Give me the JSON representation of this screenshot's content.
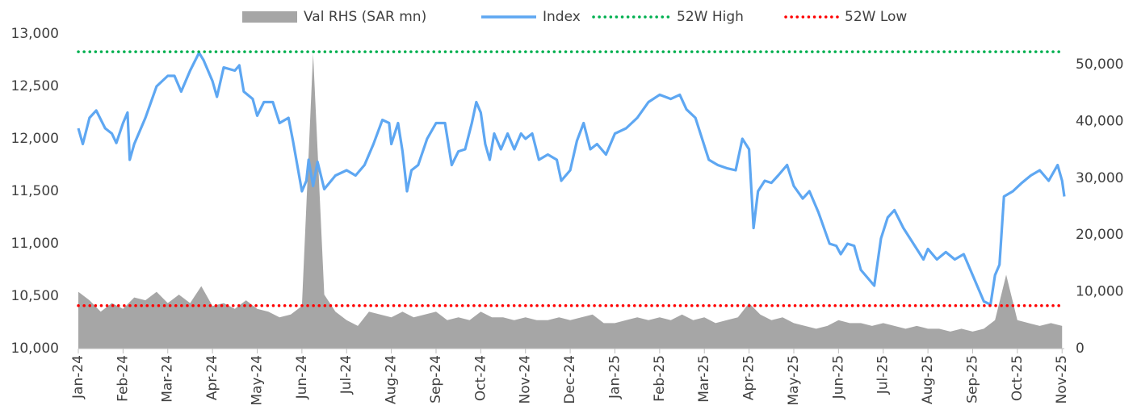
{
  "chart_data": {
    "type": "line",
    "xlim": [
      0,
      22.05
    ],
    "xticks": [
      {
        "value": 0,
        "label": "Jan-24"
      },
      {
        "value": 1,
        "label": "Feb-24"
      },
      {
        "value": 2,
        "label": "Mar-24"
      },
      {
        "value": 3,
        "label": "Apr-24"
      },
      {
        "value": 4,
        "label": "May-24"
      },
      {
        "value": 5,
        "label": "Jun-24"
      },
      {
        "value": 6,
        "label": "Jul-24"
      },
      {
        "value": 7,
        "label": "Aug-24"
      },
      {
        "value": 8,
        "label": "Sep-24"
      },
      {
        "value": 9,
        "label": "Oct-24"
      },
      {
        "value": 10,
        "label": "Nov-24"
      },
      {
        "value": 11,
        "label": "Dec-24"
      },
      {
        "value": 12,
        "label": "Jan-25"
      },
      {
        "value": 13,
        "label": "Feb-25"
      },
      {
        "value": 14,
        "label": "Mar-25"
      },
      {
        "value": 15,
        "label": "Apr-25"
      },
      {
        "value": 16,
        "label": "May-25"
      },
      {
        "value": 17,
        "label": "Jun-25"
      },
      {
        "value": 18,
        "label": "Jul-25"
      },
      {
        "value": 19,
        "label": "Aug-25"
      },
      {
        "value": 20,
        "label": "Sep-25"
      },
      {
        "value": 21,
        "label": "Oct-25"
      },
      {
        "value": 22,
        "label": "Nov-25"
      }
    ],
    "ylim": [
      10000,
      13000
    ],
    "yticks": [
      {
        "value": 10000,
        "label": "10,000"
      },
      {
        "value": 10500,
        "label": "10,500"
      },
      {
        "value": 11000,
        "label": "11,000"
      },
      {
        "value": 11500,
        "label": "11,500"
      },
      {
        "value": 12000,
        "label": "12,000"
      },
      {
        "value": 12500,
        "label": "12,500"
      },
      {
        "value": 13000,
        "label": "13,000"
      }
    ],
    "y2lim": [
      0,
      55400
    ],
    "y2ticks": [
      0,
      {
        "value": 10000,
        "label": "10,000"
      },
      {
        "value": 20000,
        "label": "20,000"
      },
      {
        "value": 30000,
        "label": "30,000"
      },
      {
        "value": 40000,
        "label": "40,000"
      },
      {
        "value": 50000,
        "label": "50,000"
      }
    ],
    "series": [
      {
        "name": "Val RHS (SAR mn)",
        "kind": "area",
        "axis": "y2",
        "color": "#a6a6a6",
        "x": [
          0,
          0.25,
          0.5,
          0.75,
          1,
          1.25,
          1.5,
          1.75,
          2,
          2.25,
          2.5,
          2.75,
          3,
          3.25,
          3.5,
          3.75,
          4,
          4.25,
          4.5,
          4.75,
          5,
          5.25,
          5.5,
          5.75,
          6,
          6.25,
          6.5,
          6.75,
          7,
          7.25,
          7.5,
          7.75,
          8,
          8.25,
          8.5,
          8.75,
          9,
          9.25,
          9.5,
          9.75,
          10,
          10.25,
          10.5,
          10.75,
          11,
          11.25,
          11.5,
          11.75,
          12,
          12.25,
          12.5,
          12.75,
          13,
          13.25,
          13.5,
          13.75,
          14,
          14.25,
          14.5,
          14.75,
          15,
          15.25,
          15.5,
          15.75,
          16,
          16.25,
          16.5,
          16.75,
          17,
          17.25,
          17.5,
          17.75,
          18,
          18.25,
          18.5,
          18.75,
          19,
          19.25,
          19.5,
          19.75,
          20,
          20.25,
          20.5,
          20.75,
          21,
          21.25,
          21.5,
          21.75,
          22
        ],
        "values": [
          10000,
          8500,
          6500,
          8000,
          7000,
          9000,
          8500,
          10000,
          8000,
          9500,
          8000,
          11000,
          7500,
          8000,
          7000,
          8500,
          7000,
          6500,
          5500,
          6000,
          7500,
          52000,
          9500,
          6500,
          5000,
          4000,
          6500,
          6000,
          5500,
          6500,
          5500,
          6000,
          6500,
          5000,
          5500,
          5000,
          6500,
          5500,
          5500,
          5000,
          5500,
          5000,
          5000,
          5500,
          5000,
          5500,
          6000,
          4500,
          4500,
          5000,
          5500,
          5000,
          5500,
          5000,
          6000,
          5000,
          5500,
          4500,
          5000,
          5500,
          8000,
          6000,
          5000,
          5500,
          4500,
          4000,
          3500,
          4000,
          5000,
          4500,
          4500,
          4000,
          4500,
          4000,
          3500,
          4000,
          3500,
          3500,
          3000,
          3500,
          3000,
          3500,
          5000,
          13000,
          5000,
          4500,
          4000,
          4500,
          4000
        ]
      },
      {
        "name": "Index",
        "kind": "line",
        "axis": "y",
        "color": "#5ea7f2",
        "x": [
          0,
          0.1,
          0.25,
          0.4,
          0.6,
          0.75,
          0.85,
          1.0,
          1.1,
          1.15,
          1.25,
          1.5,
          1.75,
          2.0,
          2.15,
          2.3,
          2.5,
          2.7,
          2.8,
          3.0,
          3.1,
          3.25,
          3.5,
          3.6,
          3.7,
          3.9,
          4.0,
          4.15,
          4.35,
          4.5,
          4.7,
          4.8,
          5.0,
          5.1,
          5.15,
          5.25,
          5.35,
          5.5,
          5.75,
          6.0,
          6.2,
          6.4,
          6.6,
          6.8,
          6.95,
          7.0,
          7.15,
          7.25,
          7.35,
          7.45,
          7.6,
          7.8,
          8.0,
          8.2,
          8.35,
          8.5,
          8.65,
          8.8,
          8.9,
          9.0,
          9.1,
          9.2,
          9.3,
          9.45,
          9.6,
          9.75,
          9.9,
          10.0,
          10.15,
          10.3,
          10.5,
          10.7,
          10.8,
          11.0,
          11.15,
          11.3,
          11.45,
          11.6,
          11.8,
          12.0,
          12.25,
          12.5,
          12.75,
          13.0,
          13.25,
          13.45,
          13.6,
          13.8,
          13.95,
          14.1,
          14.3,
          14.5,
          14.7,
          14.85,
          15.0,
          15.1,
          15.2,
          15.35,
          15.5,
          15.65,
          15.85,
          16.0,
          16.2,
          16.35,
          16.55,
          16.8,
          16.95,
          17.05,
          17.2,
          17.35,
          17.5,
          17.7,
          17.8,
          17.95,
          18.1,
          18.25,
          18.45,
          18.6,
          18.75,
          18.9,
          19.0,
          19.2,
          19.4,
          19.6,
          19.8,
          19.95,
          20.1,
          20.25,
          20.4,
          20.5,
          20.6,
          20.7,
          20.9,
          21.1,
          21.3,
          21.5,
          21.7,
          21.9,
          22.0,
          22.05
        ],
        "values": [
          12100,
          11950,
          12200,
          12270,
          12100,
          12050,
          11960,
          12150,
          12250,
          11800,
          11950,
          12200,
          12500,
          12600,
          12600,
          12450,
          12650,
          12820,
          12750,
          12550,
          12400,
          12680,
          12650,
          12700,
          12450,
          12380,
          12220,
          12350,
          12350,
          12150,
          12200,
          11980,
          11500,
          11600,
          11800,
          11550,
          11780,
          11520,
          11650,
          11700,
          11650,
          11750,
          11950,
          12180,
          12150,
          11950,
          12150,
          11880,
          11500,
          11700,
          11750,
          12000,
          12150,
          12150,
          11750,
          11880,
          11900,
          12150,
          12350,
          12250,
          11950,
          11800,
          12050,
          11900,
          12050,
          11900,
          12050,
          12000,
          12050,
          11800,
          11850,
          11800,
          11600,
          11700,
          11980,
          12150,
          11900,
          11950,
          11850,
          12050,
          12100,
          12200,
          12350,
          12420,
          12380,
          12420,
          12280,
          12200,
          12000,
          11800,
          11750,
          11720,
          11700,
          12000,
          11900,
          11150,
          11500,
          11600,
          11580,
          11650,
          11750,
          11550,
          11430,
          11500,
          11300,
          11000,
          10980,
          10900,
          11000,
          10980,
          10750,
          10650,
          10600,
          11050,
          11250,
          11320,
          11150,
          11050,
          10950,
          10850,
          10950,
          10850,
          10920,
          10850,
          10900,
          10750,
          10600,
          10450,
          10420,
          10700,
          10800,
          11450,
          11500,
          11580,
          11650,
          11700,
          11600,
          11750,
          11600,
          11450
        ]
      }
    ],
    "reference_lines": [
      {
        "name": "52W High",
        "value": 12830,
        "color": "#00b050"
      },
      {
        "name": "52W Low",
        "value": 10410,
        "color": "#ff0000"
      }
    ]
  }
}
